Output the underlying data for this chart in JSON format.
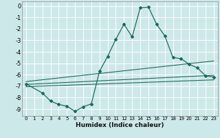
{
  "xlabel": "Humidex (Indice chaleur)",
  "background_color": "#cde8e8",
  "grid_color": "#ffffff",
  "line_color": "#1a6b5a",
  "xlim": [
    -0.5,
    23.5
  ],
  "ylim": [
    -9.6,
    0.4
  ],
  "yticks": [
    0,
    -1,
    -2,
    -3,
    -4,
    -5,
    -6,
    -7,
    -8,
    -9
  ],
  "xticks": [
    0,
    1,
    2,
    3,
    4,
    5,
    6,
    7,
    8,
    9,
    10,
    11,
    12,
    13,
    14,
    15,
    16,
    17,
    18,
    19,
    20,
    21,
    22,
    23
  ],
  "main_curve_x": [
    0,
    2,
    3,
    4,
    5,
    6,
    7,
    8,
    9,
    10,
    11,
    12,
    13,
    14,
    15,
    16,
    17,
    18,
    19,
    20,
    21,
    22,
    23
  ],
  "main_curve_y": [
    -6.8,
    -7.6,
    -8.3,
    -8.6,
    -8.75,
    -9.2,
    -8.8,
    -8.55,
    -5.7,
    -4.4,
    -2.9,
    -1.6,
    -2.7,
    -0.15,
    -0.1,
    -1.6,
    -2.6,
    -4.5,
    -4.6,
    -5.1,
    -5.4,
    -6.1,
    -6.2
  ],
  "upper_line_x": [
    0,
    23
  ],
  "upper_line_y": [
    -6.6,
    -4.8
  ],
  "middle_line_x": [
    0,
    23
  ],
  "middle_line_y": [
    -6.85,
    -6.05
  ],
  "lower_line_x": [
    0,
    23
  ],
  "lower_line_y": [
    -7.05,
    -6.45
  ]
}
